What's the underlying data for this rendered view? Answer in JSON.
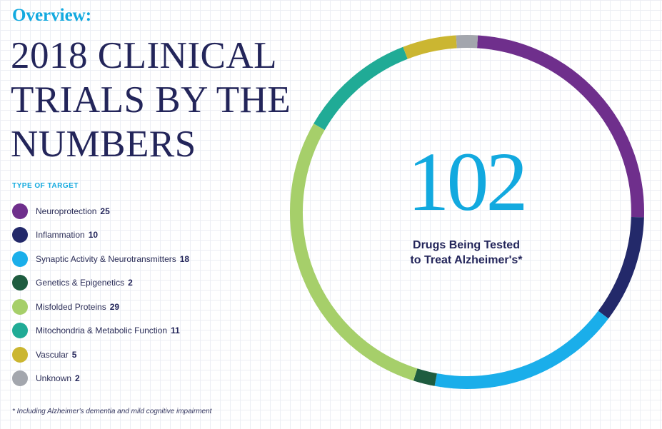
{
  "header": {
    "overview": "Overview:",
    "title_lines": [
      "2018 CLINICAL",
      "TRIALS BY THE",
      "NUMBERS"
    ]
  },
  "legend_title": "TYPE OF TARGET",
  "center": {
    "number": "102",
    "line1": "Drugs Being Tested",
    "line2": "to Treat Alzheimer's*"
  },
  "footnote": "* Including Alzheimer's dementia and mild cognitive impairment",
  "chart_data": {
    "type": "pie",
    "style": "donut",
    "total": 102,
    "categories": [
      "Neuroprotection",
      "Inflammation",
      "Synaptic Activity & Neurotransmitters",
      "Genetics & Epigenetics",
      "Misfolded Proteins",
      "Mitochondria & Metabolic Function",
      "Vascular",
      "Unknown"
    ],
    "values": [
      25,
      10,
      18,
      2,
      29,
      11,
      5,
      2
    ],
    "colors": [
      "#6f2f8c",
      "#23296a",
      "#1aaeea",
      "#1e5c3f",
      "#a6cf6a",
      "#20ab96",
      "#cbb631",
      "#a3a6ad"
    ]
  }
}
